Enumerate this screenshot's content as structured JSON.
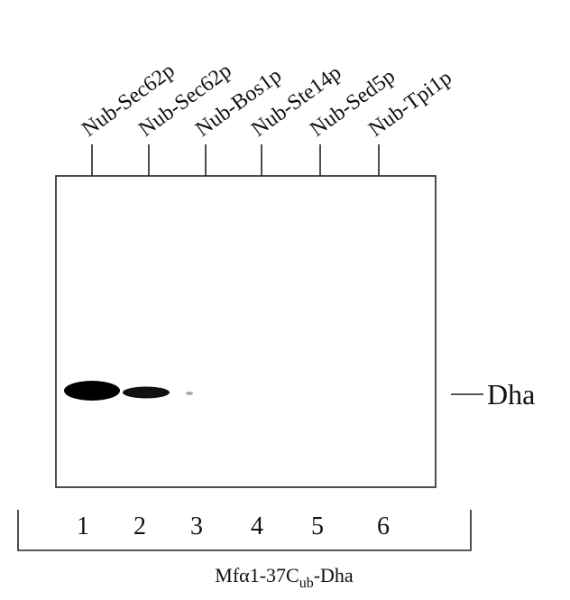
{
  "lanes": [
    {
      "label": "Nub-Sec62p",
      "number": "1"
    },
    {
      "label": "Nub-Sec62p",
      "number": "2"
    },
    {
      "label": "Nub-Bos1p",
      "number": "3"
    },
    {
      "label": "Nub-Ste14p",
      "number": "4"
    },
    {
      "label": "Nub-Sed5p",
      "number": "5"
    },
    {
      "label": "Nub-Tpi1p",
      "number": "6"
    }
  ],
  "band_label": "Dha",
  "construct": {
    "main": "Mfα1-37C",
    "subscript": "ub",
    "suffix": "-Dha"
  }
}
